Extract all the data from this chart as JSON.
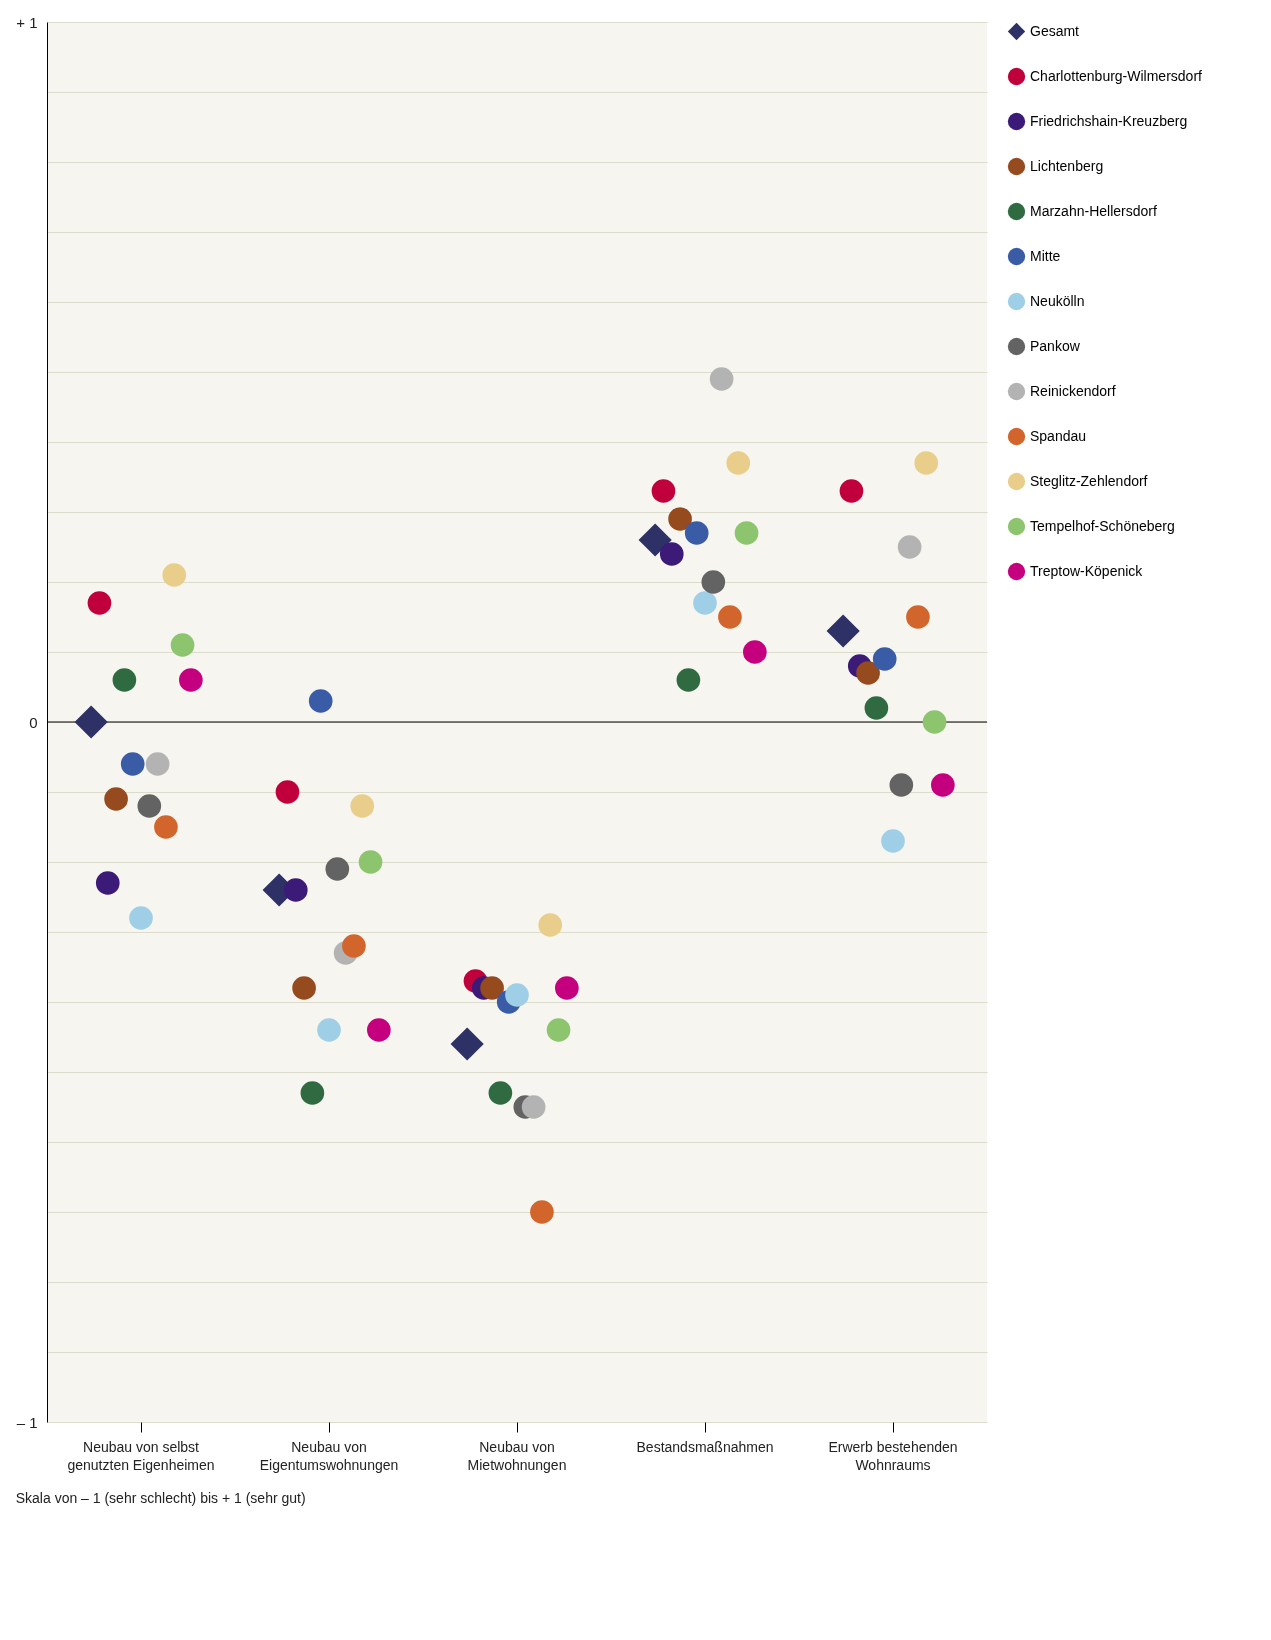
{
  "chart_data": {
    "type": "scatter",
    "categories": [
      "Neubau von selbst genutzten Eigenheimen",
      "Neubau von Eigentumswohnungen",
      "Neubau von Mietwohnungen",
      "Bestandsmaßnahmen",
      "Erwerb bestehenden Wohnraums"
    ],
    "ylim": [
      -1,
      1
    ],
    "yticks": [
      {
        "value": -1,
        "label": "– 1"
      },
      {
        "value": -0.9,
        "label": null
      },
      {
        "value": -0.8,
        "label": null
      },
      {
        "value": -0.7,
        "label": null
      },
      {
        "value": -0.6,
        "label": null
      },
      {
        "value": -0.5,
        "label": null
      },
      {
        "value": -0.4,
        "label": null
      },
      {
        "value": -0.3,
        "label": null
      },
      {
        "value": -0.2,
        "label": null
      },
      {
        "value": -0.1,
        "label": null
      },
      0,
      {
        "value": 0.1,
        "label": null
      },
      {
        "value": 0.2,
        "label": null
      },
      {
        "value": 0.3,
        "label": null
      },
      {
        "value": 0.4,
        "label": null
      },
      {
        "value": 0.5,
        "label": null
      },
      {
        "value": 0.6,
        "label": null
      },
      {
        "value": 0.7,
        "label": null
      },
      {
        "value": 0.8,
        "label": null
      },
      {
        "value": 0.9,
        "label": null
      },
      {
        "value": 1,
        "label": "+ 1"
      }
    ],
    "grid": "y",
    "legend": "top right",
    "ref_lines": [
      {
        "axis": "y",
        "value": 0,
        "color": "#000000"
      }
    ],
    "annotations": [
      "Skala von – 1 (sehr schlecht) bis + 1 (sehr gut)"
    ],
    "series": [
      {
        "name": "Gesamt",
        "color": "#2e3166",
        "marker": "diamond",
        "values": [
          0,
          -0.24,
          -0.46,
          0.26,
          0.13
        ]
      },
      {
        "name": "Charlottenburg-Wilmersdorf",
        "color": "#c0003c",
        "marker": "circle",
        "values": [
          0.17,
          -0.1,
          -0.37,
          0.33,
          0.33
        ]
      },
      {
        "name": "Friedrichshain-Kreuzberg",
        "color": "#3b1a78",
        "marker": "circle",
        "values": [
          -0.23,
          -0.24,
          -0.38,
          0.24,
          0.08
        ]
      },
      {
        "name": "Lichtenberg",
        "color": "#964b1f",
        "marker": "circle",
        "values": [
          -0.11,
          -0.38,
          -0.38,
          0.29,
          0.07
        ]
      },
      {
        "name": "Marzahn-Hellersdorf",
        "color": "#2f6a40",
        "marker": "circle",
        "values": [
          0.06,
          -0.53,
          -0.53,
          0.06,
          0.02
        ]
      },
      {
        "name": "Mitte",
        "color": "#3a5ca6",
        "marker": "circle",
        "values": [
          -0.06,
          0.03,
          -0.4,
          0.27,
          0.09
        ]
      },
      {
        "name": "Neukölln",
        "color": "#9fcfe6",
        "marker": "circle",
        "values": [
          -0.28,
          -0.44,
          -0.39,
          0.17,
          -0.17
        ]
      },
      {
        "name": "Pankow",
        "color": "#636363",
        "marker": "circle",
        "values": [
          -0.12,
          -0.21,
          -0.55,
          0.2,
          -0.09
        ]
      },
      {
        "name": "Reinickendorf",
        "color": "#b3b3b3",
        "marker": "circle",
        "values": [
          -0.06,
          -0.33,
          -0.55,
          0.49,
          0.25
        ]
      },
      {
        "name": "Spandau",
        "color": "#d2652b",
        "marker": "circle",
        "values": [
          -0.15,
          -0.32,
          -0.7,
          0.15,
          0.15
        ]
      },
      {
        "name": "Steglitz-Zehlendorf",
        "color": "#e8cd8b",
        "marker": "circle",
        "values": [
          0.21,
          -0.12,
          -0.29,
          0.37,
          0.37
        ]
      },
      {
        "name": "Tempelhof-Schöneberg",
        "color": "#8dc46e",
        "marker": "circle",
        "values": [
          0.11,
          -0.2,
          -0.44,
          0.27,
          0
        ]
      },
      {
        "name": "Treptow-Köpenick",
        "color": "#c4007e",
        "marker": "circle",
        "values": [
          0.06,
          -0.44,
          -0.38,
          0.1,
          -0.09
        ]
      }
    ]
  }
}
